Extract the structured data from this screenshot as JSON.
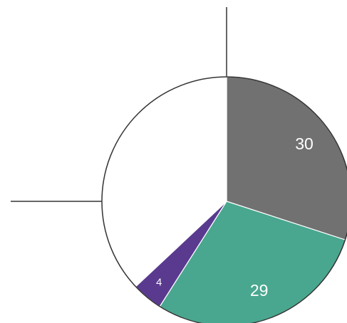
{
  "chart_data": {
    "type": "pie",
    "values": [
      30,
      29,
      4,
      37
    ],
    "value_labels": [
      "30",
      "29",
      "4",
      null
    ],
    "colors": [
      "#717171",
      "#49a78f",
      "#5a3a8f",
      "#ffffff"
    ],
    "start_angle": 0,
    "direction": "clockwise"
  }
}
